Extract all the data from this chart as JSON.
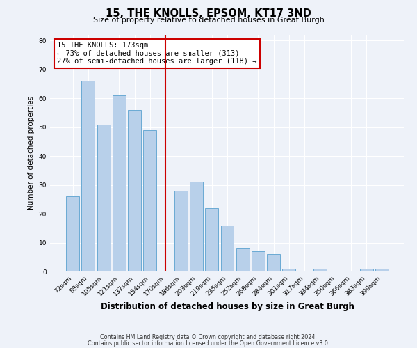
{
  "title": "15, THE KNOLLS, EPSOM, KT17 3ND",
  "subtitle": "Size of property relative to detached houses in Great Burgh",
  "xlabel": "Distribution of detached houses by size in Great Burgh",
  "ylabel": "Number of detached properties",
  "bar_labels": [
    "72sqm",
    "88sqm",
    "105sqm",
    "121sqm",
    "137sqm",
    "154sqm",
    "170sqm",
    "186sqm",
    "203sqm",
    "219sqm",
    "235sqm",
    "252sqm",
    "268sqm",
    "284sqm",
    "301sqm",
    "317sqm",
    "334sqm",
    "350sqm",
    "366sqm",
    "383sqm",
    "399sqm"
  ],
  "bar_values": [
    26,
    66,
    51,
    61,
    56,
    49,
    0,
    28,
    31,
    22,
    16,
    8,
    7,
    6,
    1,
    0,
    1,
    0,
    0,
    1,
    1
  ],
  "bar_color": "#b8d0ea",
  "bar_edge_color": "#6aaad4",
  "ylim": [
    0,
    82
  ],
  "yticks": [
    0,
    10,
    20,
    30,
    40,
    50,
    60,
    70,
    80
  ],
  "vline_color": "#cc0000",
  "annotation_line1": "15 THE KNOLLS: 173sqm",
  "annotation_line2": "← 73% of detached houses are smaller (313)",
  "annotation_line3": "27% of semi-detached houses are larger (118) →",
  "bg_color": "#eef2f9",
  "grid_color": "#ffffff",
  "footer1": "Contains HM Land Registry data © Crown copyright and database right 2024.",
  "footer2": "Contains public sector information licensed under the Open Government Licence v3.0."
}
